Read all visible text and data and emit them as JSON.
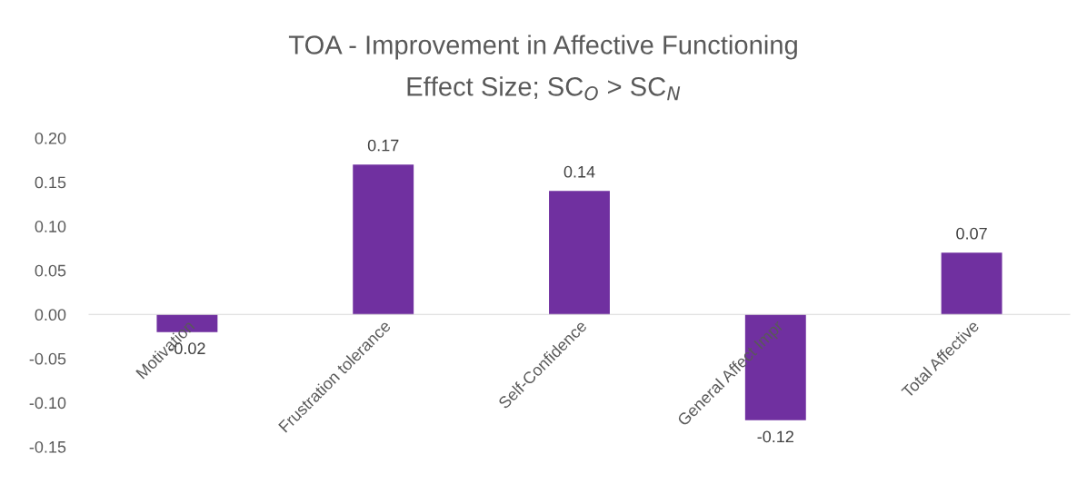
{
  "chart_data": {
    "type": "bar",
    "title": "TOA - Improvement in Affective Functioning",
    "subtitle": "Effect Size; SC$_{O}$ > SC$_{N}$",
    "categories": [
      "Motivation",
      "Frustration tolerance",
      "Self-Confidence",
      "General Affect Impr",
      "Total Affective"
    ],
    "values": [
      -0.02,
      0.17,
      0.14,
      -0.12,
      0.07
    ],
    "color": "#7030a0",
    "data_labels": true,
    "ylim": [
      -0.15,
      0.2
    ],
    "yticks": [
      {
        "value": -0.15,
        "label": "-0.15"
      },
      {
        "value": -0.1,
        "label": "-0.10"
      },
      {
        "value": -0.05,
        "label": "-0.05"
      },
      {
        "value": 0,
        "label": "0.00"
      },
      {
        "value": 0.05,
        "label": "0.05"
      },
      {
        "value": 0.1,
        "label": "0.10"
      },
      {
        "value": 0.15,
        "label": "0.15"
      },
      {
        "value": 0.2,
        "label": "0.20"
      }
    ],
    "grid": false
  }
}
